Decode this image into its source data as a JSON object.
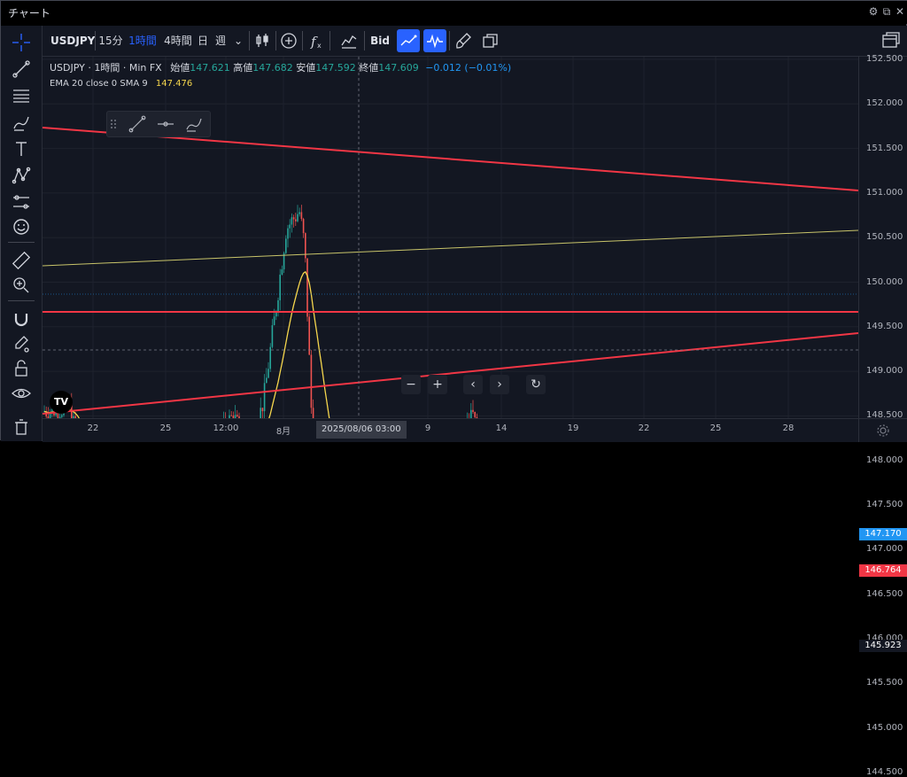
{
  "window": {
    "title": "チャート"
  },
  "toolbar": {
    "symbol": "USDJPY",
    "intervals": [
      "15分",
      "1時間",
      "4時間",
      "日",
      "週"
    ],
    "active_interval": "1時間",
    "bid_label": "Bid"
  },
  "legend": {
    "symbol_line": "USDJPY · 1時間 · Min FX",
    "open_label": "始値",
    "open": "147.621",
    "high_label": "高値",
    "high": "147.682",
    "low_label": "安値",
    "low": "147.592",
    "close_label": "終値",
    "close": "147.609",
    "change": "−0.012 (−0.01%)",
    "indicator_label": "EMA 20 close 0 SMA 9",
    "indicator_value": "147.476"
  },
  "y_axis": {
    "ticks": [
      "152.500",
      "152.000",
      "151.500",
      "151.000",
      "150.500",
      "150.000",
      "149.500",
      "149.000",
      "148.500",
      "148.000",
      "147.500",
      "147.000",
      "146.500",
      "146.000",
      "145.500",
      "145.000",
      "144.500"
    ],
    "labels": [
      {
        "text": "147.170",
        "price": 147.17,
        "color": "#2196f3"
      },
      {
        "text": "146.764",
        "price": 146.764,
        "color": "#f23645"
      },
      {
        "text": "145.923",
        "price": 145.923,
        "color": "#131722"
      }
    ]
  },
  "x_axis": {
    "ticks": [
      "22",
      "25",
      "12:00",
      "8月",
      "9",
      "14",
      "19",
      "22",
      "25",
      "28"
    ],
    "crosshair_label": "2025/08/06  03:00"
  },
  "colors": {
    "up": "#26a69a",
    "down": "#ef5350",
    "ema": "#f5d64d",
    "trend": "#f23645",
    "hline": "#f23645",
    "channel": "#c8c46a",
    "background": "#131722"
  }
}
